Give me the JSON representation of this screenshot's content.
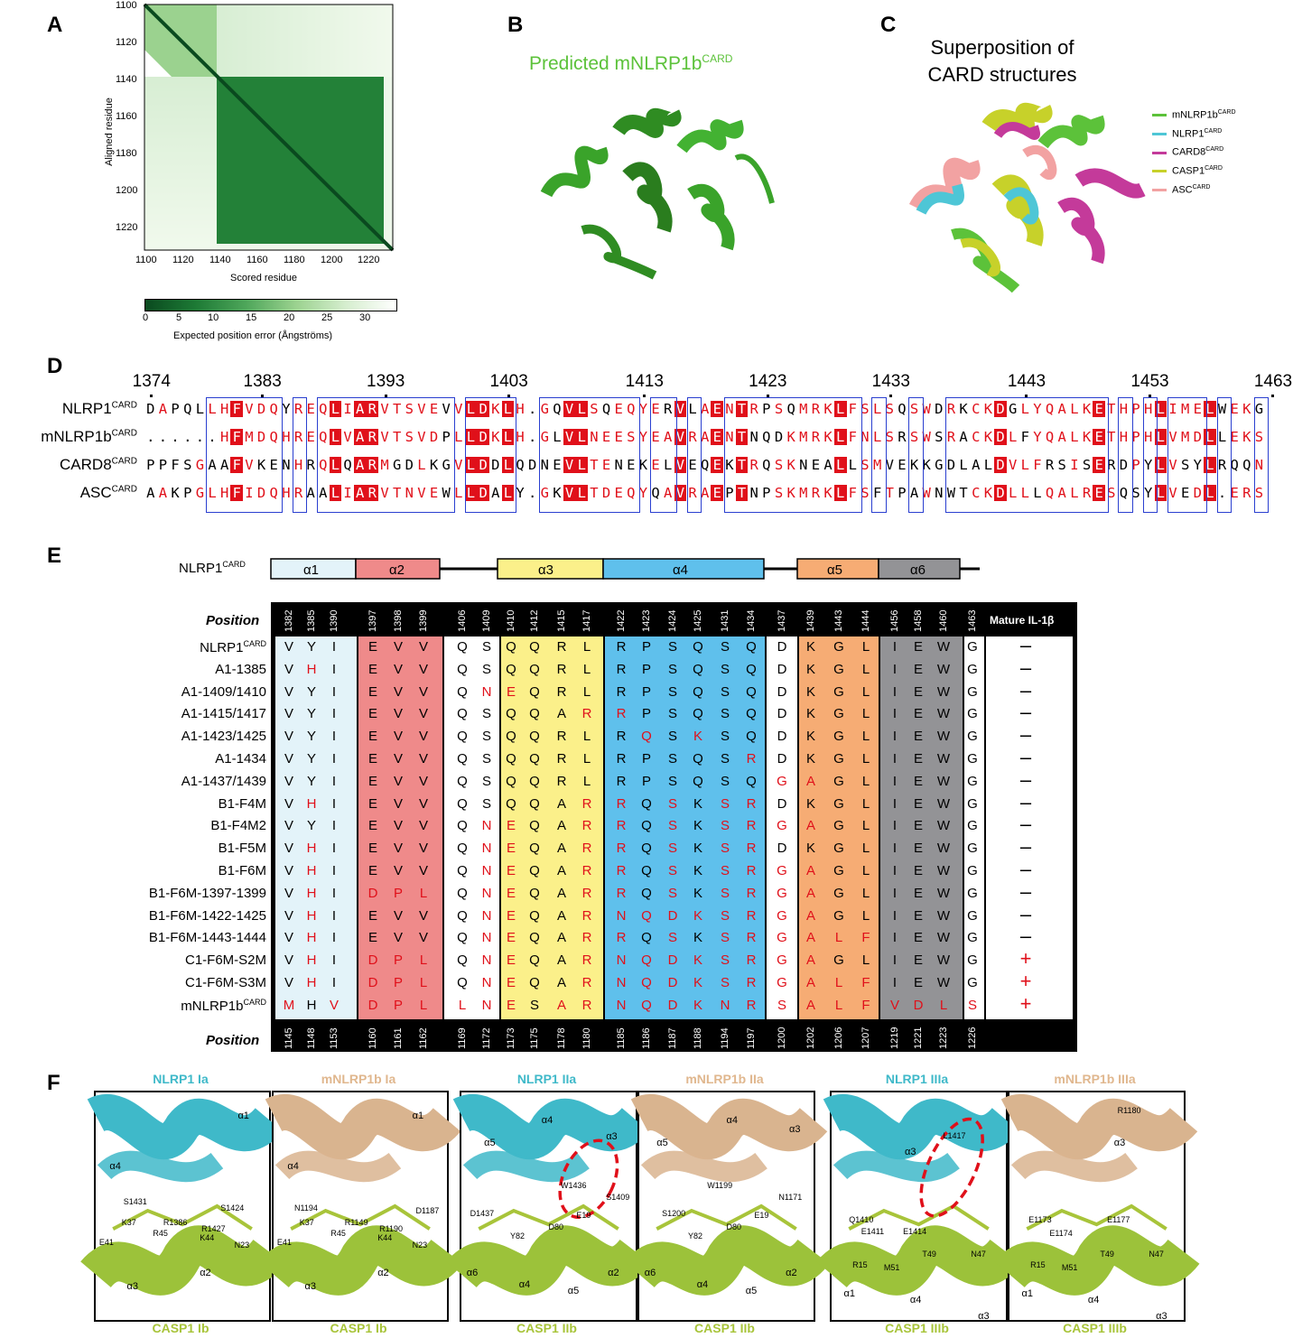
{
  "panels": {
    "A": "A",
    "B": "B",
    "C": "C",
    "D": "D",
    "E": "E",
    "F": "F"
  },
  "panelA": {
    "ylabel": "Aligned residue",
    "xlabel": "Scored residue",
    "yticks": [
      "1100",
      "1120",
      "1140",
      "1160",
      "1180",
      "1200",
      "1220"
    ],
    "xticks": [
      "1100",
      "1120",
      "1140",
      "1160",
      "1180",
      "1200",
      "1220"
    ],
    "cbar_ticks": [
      "0",
      "5",
      "10",
      "15",
      "20",
      "25",
      "30"
    ],
    "cbar_label": "Expected position error (Ångströms)"
  },
  "panelB": {
    "title_main": "Predicted mNLRP1b",
    "title_sup": "CARD"
  },
  "panelC": {
    "title_line1": "Superposition of",
    "title_line2": "CARD structures",
    "legend": [
      {
        "name": "mNLRP1b",
        "sup": "CARD",
        "color": "#5cc23a"
      },
      {
        "name": "NLRP1",
        "sup": "CARD",
        "color": "#4ec6d6"
      },
      {
        "name": "CARD8",
        "sup": "CARD",
        "color": "#c43a9a"
      },
      {
        "name": "CASP1",
        "sup": "CARD",
        "color": "#c7d12a"
      },
      {
        "name": "ASC",
        "sup": "CARD",
        "color": "#f2a2a2"
      }
    ]
  },
  "panelD": {
    "numbers": [
      "1374",
      "1383",
      "1393",
      "1403",
      "1413",
      "1423",
      "1433",
      "1443",
      "1453",
      "1463"
    ],
    "seqs": [
      {
        "name": "NLRP1",
        "sup": "CARD",
        "seq": "DAPQLLHFVDQYREQLIARVTSVEVVLDKLH.GQVLSQEQYERVLAENTRPSQMRKLFSLSQSWDRKCKDGLYQALKETHPHLIMELWEKG"
      },
      {
        "name": "mNLRP1b",
        "sup": "CARD",
        "seq": "......HFMDQHREQLVARVTSVDPLLDKLH.GLVLNEESYEAVRAENTNQDKMRKLFNLSRSWSRACKDLFYQALKETHPHLVMDLLEKS"
      },
      {
        "name": "CARD8",
        "sup": "CARD",
        "seq": "PPFSGAAFVKENHRQLQARMGDLKGVLDDLQDNEVLTENEKELVEQEKTRQSKNEALLSMVEKKGDLALDVLFRSISERDPYLVSYLRQQN"
      },
      {
        "name": "ASC",
        "sup": "CARD",
        "seq": "AAKPGLHFIDQHRAALIARVTNVEWLLDALY.GKVLTDEQYQAVRAEPTNPSKMRKLFSFTPAWNWTCKDLLLQALRESQSYLVEDL.ERS"
      }
    ]
  },
  "panelE": {
    "domain_label": "NLRP1",
    "domain_sup": "CARD",
    "helices": [
      "α1",
      "α2",
      "α3",
      "α4",
      "α5",
      "α6"
    ],
    "position_label": "Position",
    "il_header": "Mature IL-1β",
    "top_positions": [
      "1382",
      "1385",
      "1390",
      "1397",
      "1398",
      "1399",
      "1406",
      "1409",
      "1410",
      "1412",
      "1415",
      "1417",
      "1422",
      "1423",
      "1424",
      "1425",
      "1431",
      "1434",
      "1437",
      "1439",
      "1443",
      "1444",
      "1456",
      "1458",
      "1460",
      "1463"
    ],
    "bottom_positions": [
      "1145",
      "1148",
      "1153",
      "1160",
      "1161",
      "1162",
      "1169",
      "1172",
      "1173",
      "1175",
      "1178",
      "1180",
      "1185",
      "1186",
      "1187",
      "1188",
      "1194",
      "1197",
      "1200",
      "1202",
      "1206",
      "1207",
      "1219",
      "1221",
      "1223",
      "1226"
    ],
    "rows": [
      {
        "name": "NLRP1",
        "sup": "CARD",
        "cells": "VYIEVVQSQQRLRPSQSQDKGLIEWG",
        "mut": "00000000000000000000000000",
        "il": "–"
      },
      {
        "name": "A1-1385",
        "sup": "",
        "cells": "VHIEVVQSQQRLRPSQSQDKGLIEWG",
        "mut": "01000000000000000000000000",
        "il": "–"
      },
      {
        "name": "A1-1409/1410",
        "sup": "",
        "cells": "VYIEVVQNEQRLRPSQSQDKGLIEWG",
        "mut": "00000001100000000000000000",
        "il": "–"
      },
      {
        "name": "A1-1415/1417",
        "sup": "",
        "cells": "VYIEVVQSQQARRPSQSQDKGLIEWG",
        "mut": "00000000000110000000000000",
        "il": "–"
      },
      {
        "name": "A1-1423/1425",
        "sup": "",
        "cells": "VYIEVVQSQQRLRQSKSQDKGLIEWG",
        "mut": "00000000000001010000000000",
        "il": "–"
      },
      {
        "name": "A1-1434",
        "sup": "",
        "cells": "VYIEVVQSQQRLRPSQSRDKGLIEWG",
        "mut": "00000000000000000100000000",
        "il": "–"
      },
      {
        "name": "A1-1437/1439",
        "sup": "",
        "cells": "VYIEVVQSQQRLRPSQSQGAGLIEWG",
        "mut": "00000000000000000011000000",
        "il": "–"
      },
      {
        "name": "B1-F4M",
        "sup": "",
        "cells": "VHIEVVQSQQARRQSKSRDKGLIEWG",
        "mut": "01000000000110101100000000",
        "il": "–"
      },
      {
        "name": "B1-F4M2",
        "sup": "",
        "cells": "VYIEVVQNEQARRQSKSRGAGLIEWG",
        "mut": "00000001100110101111000000",
        "il": "–"
      },
      {
        "name": "B1-F5M",
        "sup": "",
        "cells": "VHIEVVQNEQARRQSKSRDKGLIEWG",
        "mut": "01000001100110101100000000",
        "il": "–"
      },
      {
        "name": "B1-F6M",
        "sup": "",
        "cells": "VHIEVVQNEQARRQSKSRGAGLIEWG",
        "mut": "01000001100110101111000000",
        "il": "–"
      },
      {
        "name": "B1-F6M-1397-1399",
        "sup": "",
        "cells": "VHIDPLQNEQARRQSKSRGAGLIEWG",
        "mut": "01011101100110101111000000",
        "il": "–"
      },
      {
        "name": "B1-F6M-1422-1425",
        "sup": "",
        "cells": "VHIEVVQNEQARNQDKSRGAGLIEWG",
        "mut": "01000001100111111111000000",
        "il": "–"
      },
      {
        "name": "B1-F6M-1443-1444",
        "sup": "",
        "cells": "VHIEVVQNEQARRQSKSRGALFIEWG",
        "mut": "01000001100110101111110000",
        "il": "–"
      },
      {
        "name": "C1-F6M-S2M",
        "sup": "",
        "cells": "VHIDPLQNEQARNQDKSRGAGLIEWG",
        "mut": "01011101100111111111000000",
        "il": "+"
      },
      {
        "name": "C1-F6M-S3M",
        "sup": "",
        "cells": "VHIDPLQNEQARNQDKSRGALFIEWG",
        "mut": "01011101100111111111110000",
        "il": "+"
      },
      {
        "name": "mNLRP1b",
        "sup": "CARD",
        "cells": "MHVDPLLNESARNQDKNRSALFVDLS",
        "mut": "10111111101111111111111111",
        "il": "+"
      }
    ]
  },
  "panelF": {
    "titles": [
      "NLRP1 Ia",
      "mNLRP1b Ia",
      "NLRP1 IIa",
      "mNLRP1b IIa",
      "NLRP1 IIIa",
      "mNLRP1b IIIa"
    ],
    "subs": [
      "CASP1 Ib",
      "CASP1 Ib",
      "CASP1 IIb",
      "CASP1 IIb",
      "CASP1 IIIb",
      "CASP1 IIIb"
    ],
    "labels": [
      [
        [
          "α1",
          0.82,
          0.08
        ],
        [
          "α4",
          0.08,
          0.3
        ],
        [
          "S1431",
          0.16,
          0.46
        ],
        [
          "S1424",
          0.72,
          0.49
        ],
        [
          "K37",
          0.15,
          0.55
        ],
        [
          "R1386",
          0.39,
          0.55
        ],
        [
          "R1427",
          0.61,
          0.58
        ],
        [
          "E41",
          0.02,
          0.64
        ],
        [
          "R45",
          0.33,
          0.6
        ],
        [
          "K44",
          0.6,
          0.62
        ],
        [
          "N23",
          0.8,
          0.65
        ],
        [
          "α3",
          0.18,
          0.83
        ],
        [
          "α2",
          0.6,
          0.77
        ]
      ],
      [
        [
          "α1",
          0.8,
          0.08
        ],
        [
          "α4",
          0.08,
          0.3
        ],
        [
          "N1194",
          0.12,
          0.49
        ],
        [
          "D1187",
          0.82,
          0.5
        ],
        [
          "K37",
          0.15,
          0.55
        ],
        [
          "R1149",
          0.41,
          0.55
        ],
        [
          "R1190",
          0.61,
          0.58
        ],
        [
          "E41",
          0.02,
          0.64
        ],
        [
          "R45",
          0.33,
          0.6
        ],
        [
          "K44",
          0.6,
          0.62
        ],
        [
          "N23",
          0.8,
          0.65
        ],
        [
          "α3",
          0.18,
          0.83
        ],
        [
          "α2",
          0.6,
          0.77
        ]
      ],
      [
        [
          "α4",
          0.46,
          0.1
        ],
        [
          "α5",
          0.13,
          0.2
        ],
        [
          "α3",
          0.83,
          0.17
        ],
        [
          "W1436",
          0.57,
          0.39
        ],
        [
          "S1409",
          0.83,
          0.44
        ],
        [
          "D1437",
          0.05,
          0.51
        ],
        [
          "E19",
          0.66,
          0.52
        ],
        [
          "Y82",
          0.28,
          0.61
        ],
        [
          "D80",
          0.5,
          0.57
        ],
        [
          "α6",
          0.03,
          0.77
        ],
        [
          "α4",
          0.33,
          0.82
        ],
        [
          "α5",
          0.61,
          0.85
        ],
        [
          "α2",
          0.84,
          0.77
        ]
      ],
      [
        [
          "α4",
          0.5,
          0.1
        ],
        [
          "α5",
          0.1,
          0.2
        ],
        [
          "α3",
          0.86,
          0.14
        ],
        [
          "W1199",
          0.39,
          0.39
        ],
        [
          "N1171",
          0.8,
          0.44
        ],
        [
          "S1200",
          0.13,
          0.51
        ],
        [
          "E19",
          0.66,
          0.52
        ],
        [
          "Y82",
          0.28,
          0.61
        ],
        [
          "D80",
          0.5,
          0.57
        ],
        [
          "α6",
          0.03,
          0.77
        ],
        [
          "α4",
          0.33,
          0.82
        ],
        [
          "α5",
          0.61,
          0.85
        ],
        [
          "α2",
          0.84,
          0.77
        ]
      ],
      [
        [
          "L1417",
          0.64,
          0.17
        ],
        [
          "α3",
          0.42,
          0.24
        ],
        [
          "Q1410",
          0.1,
          0.54
        ],
        [
          "E1411",
          0.17,
          0.59
        ],
        [
          "E1414",
          0.41,
          0.59
        ],
        [
          "R15",
          0.12,
          0.74
        ],
        [
          "M51",
          0.3,
          0.75
        ],
        [
          "T49",
          0.52,
          0.69
        ],
        [
          "N47",
          0.8,
          0.69
        ],
        [
          "α1",
          0.07,
          0.86
        ],
        [
          "α4",
          0.45,
          0.89
        ],
        [
          "α3",
          0.84,
          0.96
        ]
      ],
      [
        [
          "R1180",
          0.62,
          0.06
        ],
        [
          "α3",
          0.6,
          0.2
        ],
        [
          "E1173",
          0.11,
          0.54
        ],
        [
          "E1174",
          0.23,
          0.6
        ],
        [
          "E1177",
          0.56,
          0.54
        ],
        [
          "R15",
          0.12,
          0.74
        ],
        [
          "M51",
          0.3,
          0.75
        ],
        [
          "T49",
          0.52,
          0.69
        ],
        [
          "N47",
          0.8,
          0.69
        ],
        [
          "α1",
          0.07,
          0.86
        ],
        [
          "α4",
          0.45,
          0.89
        ],
        [
          "α3",
          0.84,
          0.96
        ]
      ]
    ]
  }
}
